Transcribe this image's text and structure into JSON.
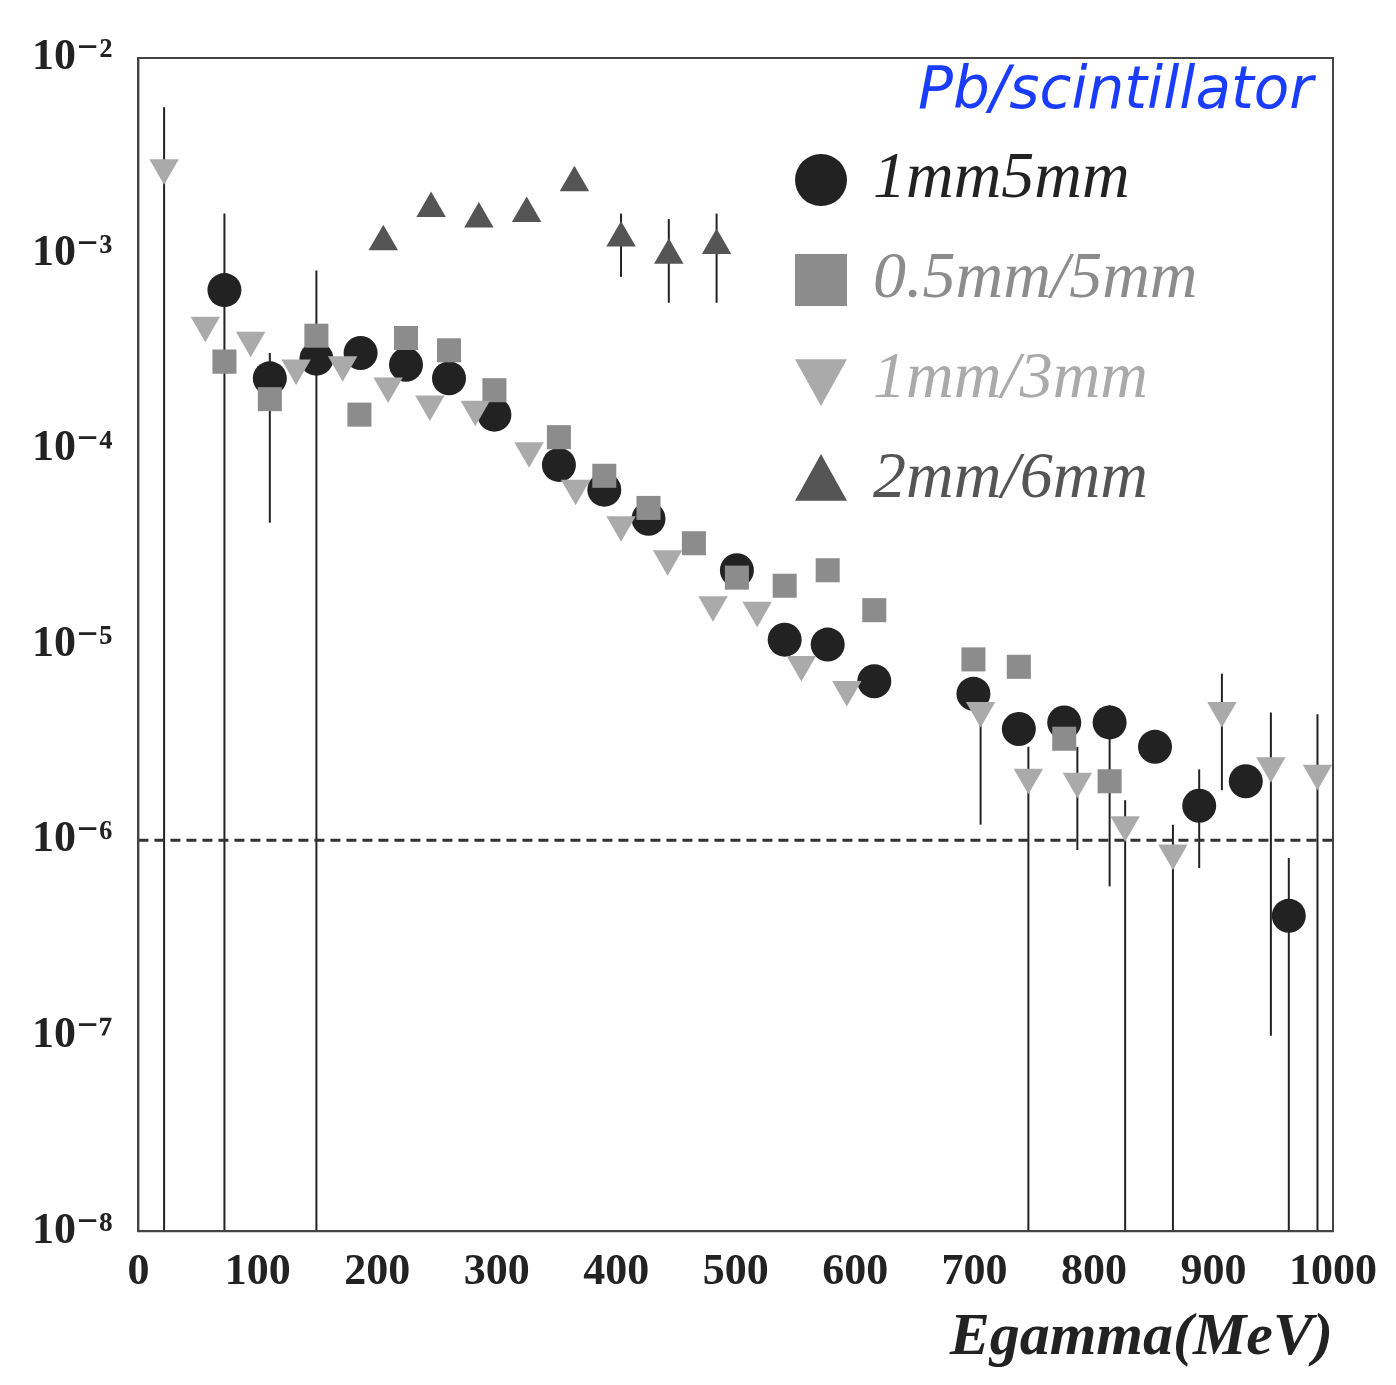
{
  "chart_data": {
    "type": "scatter",
    "xlabel": "Egamma(MeV)",
    "annotations": [
      "Pb/scintillator"
    ],
    "log": "y",
    "legend": "top right",
    "grid": false,
    "xlim": [
      0,
      1000
    ],
    "xticks": [
      0,
      100,
      200,
      300,
      400,
      500,
      600,
      700,
      800,
      900,
      1000
    ],
    "ylim": [
      1e-08,
      0.01
    ],
    "yticks": [
      {
        "value": 1e-08,
        "label": "10⁻⁸"
      },
      {
        "value": 1e-07,
        "label": "10⁻⁷"
      },
      {
        "value": 1e-06,
        "label": "10⁻⁶"
      },
      {
        "value": 1e-05,
        "label": "10⁻⁵"
      },
      {
        "value": 0.0001,
        "label": "10⁻⁴"
      },
      {
        "value": 0.001,
        "label": "10⁻³"
      },
      {
        "value": 0.01,
        "label": "10⁻²"
      }
    ],
    "ref_lines": [
      {
        "axis": "y",
        "value": 1e-06,
        "line_style": "dashed",
        "color": "#333333"
      }
    ],
    "series": [
      {
        "name": "1mm5mm",
        "color": "#222222",
        "marker": "circle",
        "x": [
          72,
          110,
          149,
          186,
          224,
          260,
          298,
          352,
          390,
          427,
          501,
          541,
          577,
          616,
          699,
          737,
          775,
          813,
          851,
          888,
          927,
          963
        ],
        "values": [
          0.00065,
          0.00023,
          0.00029,
          0.00031,
          0.00027,
          0.00023,
          0.00015,
          8.3e-05,
          6.2e-05,
          4.4e-05,
          2.4e-05,
          1.06e-05,
          1e-05,
          6.5e-06,
          5.6e-06,
          3.7e-06,
          4e-06,
          4e-06,
          3e-06,
          1.5e-06,
          2e-06,
          4.1e-07
        ],
        "errors": [
          [
            1e-08,
            0.0016
          ],
          [
            4.2e-05,
            0.00031
          ],
          null,
          null,
          null,
          null,
          null,
          null,
          null,
          null,
          null,
          null,
          null,
          null,
          null,
          null,
          null,
          [
            5.8e-07,
            4.9e-06
          ],
          null,
          [
            7.2e-07,
            2.3e-06
          ],
          null,
          [
            1e-08,
            8.1e-07
          ]
        ]
      },
      {
        "name": "0.5mm/5mm",
        "color": "#8c8c8c",
        "marker": "square",
        "x": [
          72,
          110,
          149,
          185,
          224,
          260,
          298,
          352,
          390,
          427,
          465,
          501,
          541,
          577,
          616,
          699,
          737,
          775,
          813
        ],
        "values": [
          0.00028,
          0.00018,
          0.00038,
          0.00015,
          0.00037,
          0.00032,
          0.0002,
          0.000115,
          7.3e-05,
          5e-05,
          3.3e-05,
          2.2e-05,
          2e-05,
          2.4e-05,
          1.5e-05,
          8.4e-06,
          7.7e-06,
          3.3e-06,
          2e-06
        ],
        "errors": [
          null,
          null,
          [
            1e-08,
            0.00082
          ],
          null,
          null,
          null,
          null,
          null,
          null,
          null,
          null,
          null,
          null,
          null,
          null,
          null,
          null,
          null,
          null
        ]
      },
      {
        "name": "1mm/3mm",
        "color": "#aaaaaa",
        "marker": "triangle-down",
        "x": [
          21.5,
          56,
          94,
          132,
          171,
          209,
          244,
          282,
          327,
          366,
          404,
          443,
          481,
          518,
          555,
          593,
          705,
          745,
          786,
          826,
          866,
          907,
          948,
          987
        ],
        "values": [
          0.00275,
          0.00043,
          0.00036,
          0.00026,
          0.00027,
          0.00021,
          0.00017,
          0.00016,
          9.8e-05,
          6.3e-05,
          4.1e-05,
          2.75e-05,
          1.6e-05,
          1.5e-05,
          7.9e-06,
          5.9e-06,
          4.6e-06,
          2.1e-06,
          2e-06,
          1.2e-06,
          8.6e-07,
          4.6e-06,
          2.4e-06,
          2.2e-06
        ],
        "errors": [
          [
            1e-08,
            0.0056
          ],
          null,
          null,
          null,
          null,
          null,
          null,
          null,
          null,
          null,
          null,
          null,
          null,
          null,
          null,
          null,
          [
            1.2e-06,
            4.6e-06
          ],
          [
            1e-08,
            3e-06
          ],
          [
            8.9e-07,
            3e-06
          ],
          [
            1e-08,
            1.6e-06
          ],
          [
            1e-08,
            1.2e-06
          ],
          [
            1.8e-06,
            7.1e-06
          ],
          [
            1e-07,
            4.5e-06
          ],
          [
            1e-08,
            4.4e-06
          ]
        ]
      },
      {
        "name": "2mm/6mm",
        "color": "#555555",
        "marker": "triangle",
        "x": [
          205,
          245,
          285,
          325,
          365,
          404,
          444,
          484
        ],
        "values": [
          0.00115,
          0.0017,
          0.0015,
          0.0016,
          0.0023,
          0.0012,
          0.00098,
          0.0011
        ],
        "errors": [
          null,
          null,
          null,
          null,
          null,
          [
            0.00076,
            0.0016
          ],
          [
            0.00056,
            0.0015
          ],
          [
            0.00056,
            0.0016
          ]
        ]
      }
    ]
  }
}
